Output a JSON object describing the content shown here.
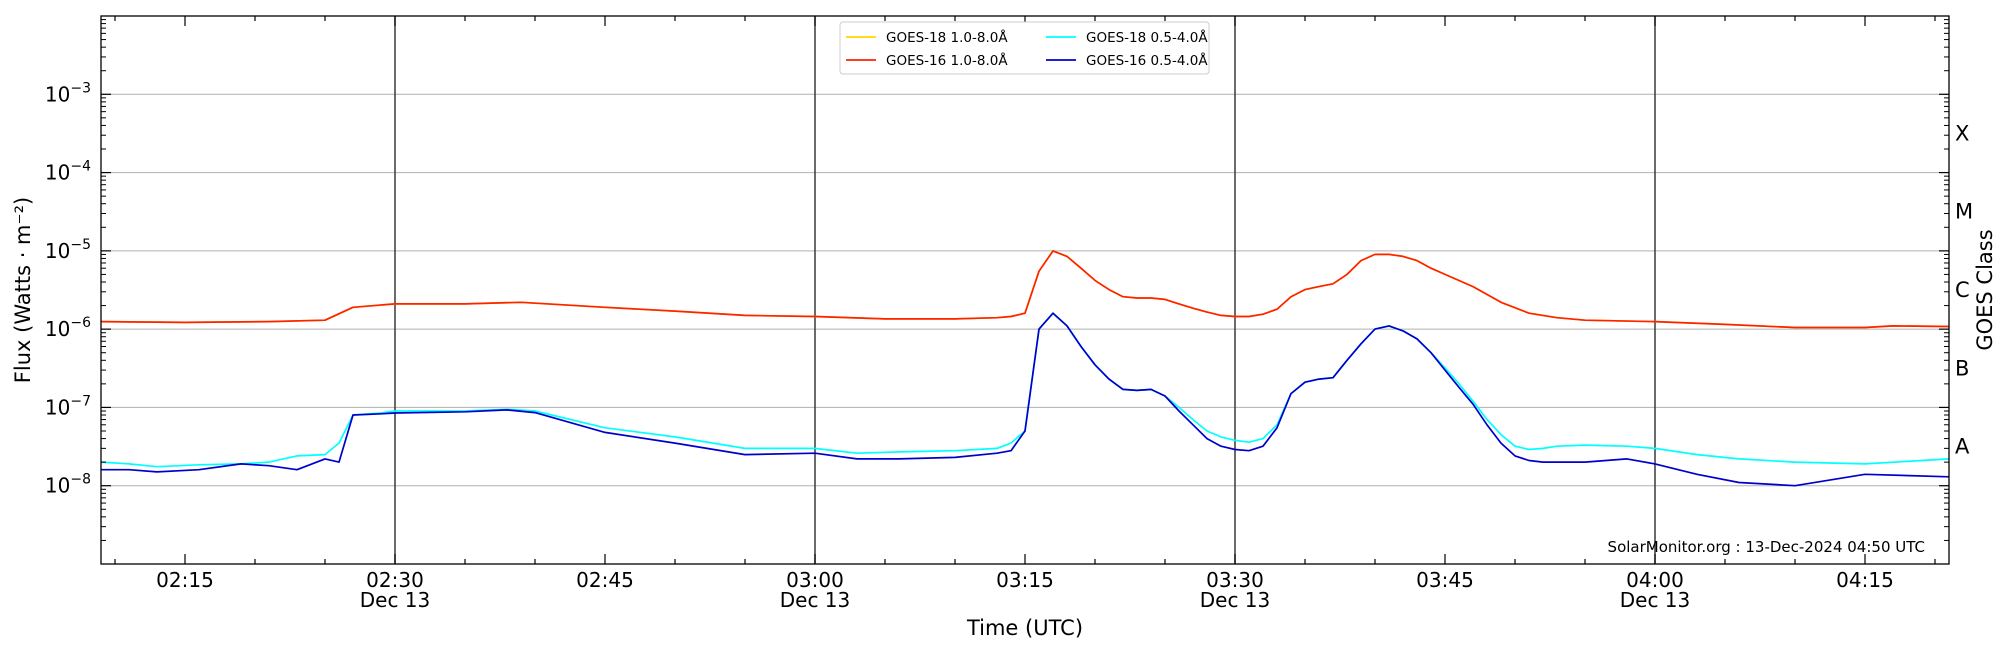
{
  "chart_data": {
    "type": "line",
    "x_unit": "minutes",
    "xlim": [
      "02:09",
      "04:21"
    ],
    "ylim": [
      1e-09,
      0.01
    ],
    "y_scale": "log",
    "xlabel": "Time (UTC)",
    "ylabel": "Flux (Watts · m⁻²)",
    "ylabel_right": "GOES Class",
    "footer": "SolarMonitor.org : 13-Dec-2024 04:50 UTC",
    "x_ticks": [
      {
        "label": "02:15",
        "date": ""
      },
      {
        "label": "02:30",
        "date": "Dec 13"
      },
      {
        "label": "02:45",
        "date": ""
      },
      {
        "label": "03:00",
        "date": "Dec 13"
      },
      {
        "label": "03:15",
        "date": ""
      },
      {
        "label": "03:30",
        "date": "Dec 13"
      },
      {
        "label": "03:45",
        "date": ""
      },
      {
        "label": "04:00",
        "date": "Dec 13"
      },
      {
        "label": "04:15",
        "date": ""
      }
    ],
    "y_ticks": [
      {
        "base": "10",
        "exp": "−8"
      },
      {
        "base": "10",
        "exp": "−7"
      },
      {
        "base": "10",
        "exp": "−6"
      },
      {
        "base": "10",
        "exp": "−5"
      },
      {
        "base": "10",
        "exp": "−4"
      },
      {
        "base": "10",
        "exp": "−3"
      }
    ],
    "goes_classes": [
      "A",
      "B",
      "C",
      "M",
      "X"
    ],
    "vlines": [
      "02:30",
      "03:00",
      "03:30",
      "04:00"
    ],
    "grid": "horizontal",
    "legend": [
      {
        "name": "GOES-18 1.0-8.0Å",
        "color": "#FFD700"
      },
      {
        "name": "GOES-18 0.5-4.0Å",
        "color": "#00FFFF"
      },
      {
        "name": "GOES-16 1.0-8.0Å",
        "color": "#FF2200"
      },
      {
        "name": "GOES-16 0.5-4.0Å",
        "color": "#0000CC"
      }
    ],
    "series": [
      {
        "name": "GOES-18 1.0-8.0Å",
        "color": "#FFD700",
        "x": [
          "02:09",
          "02:15",
          "02:21",
          "02:25",
          "02:27",
          "02:30",
          "02:35",
          "02:39",
          "02:45",
          "02:50",
          "02:55",
          "03:00",
          "03:05",
          "03:10",
          "03:13",
          "03:14",
          "03:15",
          "03:16",
          "03:17",
          "03:18",
          "03:19",
          "03:20",
          "03:21",
          "03:22",
          "03:23",
          "03:24",
          "03:25",
          "03:26",
          "03:27",
          "03:28",
          "03:29",
          "03:30",
          "03:31",
          "03:32",
          "03:33",
          "03:34",
          "03:35",
          "03:36",
          "03:37",
          "03:38",
          "03:39",
          "03:40",
          "03:41",
          "03:42",
          "03:43",
          "03:44",
          "03:45",
          "03:47",
          "03:49",
          "03:51",
          "03:53",
          "03:55",
          "04:00",
          "04:05",
          "04:10",
          "04:13",
          "04:15",
          "04:17",
          "04:21"
        ],
        "y": [
          1.25e-06,
          1.22e-06,
          1.25e-06,
          1.3e-06,
          1.9e-06,
          2.1e-06,
          2.1e-06,
          2.2e-06,
          1.9e-06,
          1.7e-06,
          1.5e-06,
          1.45e-06,
          1.35e-06,
          1.35e-06,
          1.4e-06,
          1.45e-06,
          1.6e-06,
          5.5e-06,
          1e-05,
          8.5e-06,
          6e-06,
          4.2e-06,
          3.2e-06,
          2.6e-06,
          2.5e-06,
          2.5e-06,
          2.4e-06,
          2.1e-06,
          1.85e-06,
          1.65e-06,
          1.5e-06,
          1.45e-06,
          1.45e-06,
          1.55e-06,
          1.8e-06,
          2.6e-06,
          3.2e-06,
          3.5e-06,
          3.8e-06,
          5e-06,
          7.5e-06,
          9e-06,
          9e-06,
          8.5e-06,
          7.5e-06,
          6e-06,
          5e-06,
          3.5e-06,
          2.2e-06,
          1.6e-06,
          1.4e-06,
          1.3e-06,
          1.25e-06,
          1.15e-06,
          1.05e-06,
          1.05e-06,
          1.05e-06,
          1.1e-06,
          1.08e-06
        ]
      },
      {
        "name": "GOES-16 1.0-8.0Å",
        "color": "#FF2200",
        "x": [
          "02:09",
          "02:15",
          "02:21",
          "02:25",
          "02:27",
          "02:30",
          "02:35",
          "02:39",
          "02:45",
          "02:50",
          "02:55",
          "03:00",
          "03:05",
          "03:10",
          "03:13",
          "03:14",
          "03:15",
          "03:16",
          "03:17",
          "03:18",
          "03:19",
          "03:20",
          "03:21",
          "03:22",
          "03:23",
          "03:24",
          "03:25",
          "03:26",
          "03:27",
          "03:28",
          "03:29",
          "03:30",
          "03:31",
          "03:32",
          "03:33",
          "03:34",
          "03:35",
          "03:36",
          "03:37",
          "03:38",
          "03:39",
          "03:40",
          "03:41",
          "03:42",
          "03:43",
          "03:44",
          "03:45",
          "03:47",
          "03:49",
          "03:51",
          "03:53",
          "03:55",
          "04:00",
          "04:05",
          "04:10",
          "04:13",
          "04:15",
          "04:17",
          "04:21"
        ],
        "y": [
          1.25e-06,
          1.22e-06,
          1.25e-06,
          1.3e-06,
          1.9e-06,
          2.1e-06,
          2.1e-06,
          2.2e-06,
          1.9e-06,
          1.7e-06,
          1.5e-06,
          1.45e-06,
          1.35e-06,
          1.35e-06,
          1.4e-06,
          1.45e-06,
          1.6e-06,
          5.5e-06,
          1e-05,
          8.5e-06,
          6e-06,
          4.2e-06,
          3.2e-06,
          2.6e-06,
          2.5e-06,
          2.5e-06,
          2.4e-06,
          2.1e-06,
          1.85e-06,
          1.65e-06,
          1.5e-06,
          1.45e-06,
          1.45e-06,
          1.55e-06,
          1.8e-06,
          2.6e-06,
          3.2e-06,
          3.5e-06,
          3.8e-06,
          5e-06,
          7.5e-06,
          9e-06,
          9e-06,
          8.5e-06,
          7.5e-06,
          6e-06,
          5e-06,
          3.5e-06,
          2.2e-06,
          1.6e-06,
          1.4e-06,
          1.3e-06,
          1.25e-06,
          1.15e-06,
          1.05e-06,
          1.05e-06,
          1.05e-06,
          1.1e-06,
          1.08e-06
        ]
      },
      {
        "name": "GOES-18 0.5-4.0Å",
        "color": "#00FFFF",
        "x": [
          "02:09",
          "02:11",
          "02:13",
          "02:16",
          "02:19",
          "02:21",
          "02:23",
          "02:25",
          "02:26",
          "02:27",
          "02:29",
          "02:30",
          "02:35",
          "02:38",
          "02:40",
          "02:45",
          "02:50",
          "02:55",
          "03:00",
          "03:03",
          "03:06",
          "03:10",
          "03:13",
          "03:14",
          "03:15",
          "03:16",
          "03:17",
          "03:18",
          "03:19",
          "03:20",
          "03:21",
          "03:22",
          "03:23",
          "03:24",
          "03:25",
          "03:26",
          "03:27",
          "03:28",
          "03:29",
          "03:30",
          "03:31",
          "03:32",
          "03:33",
          "03:34",
          "03:35",
          "03:36",
          "03:37",
          "03:38",
          "03:39",
          "03:40",
          "03:41",
          "03:42",
          "03:43",
          "03:44",
          "03:45",
          "03:46",
          "03:47",
          "03:48",
          "03:49",
          "03:50",
          "03:51",
          "03:52",
          "03:53",
          "03:55",
          "03:58",
          "04:00",
          "04:03",
          "04:06",
          "04:10",
          "04:15",
          "04:21"
        ],
        "y": [
          2e-08,
          1.9e-08,
          1.75e-08,
          1.85e-08,
          1.9e-08,
          2e-08,
          2.4e-08,
          2.5e-08,
          3.5e-08,
          8e-08,
          8.5e-08,
          9e-08,
          9e-08,
          9.5e-08,
          9e-08,
          5.5e-08,
          4.2e-08,
          3e-08,
          3e-08,
          2.6e-08,
          2.7e-08,
          2.8e-08,
          3e-08,
          3.5e-08,
          5e-08,
          1e-06,
          1.6e-06,
          1.1e-06,
          6e-07,
          3.5e-07,
          2.3e-07,
          1.7e-07,
          1.65e-07,
          1.7e-07,
          1.4e-07,
          1e-07,
          7e-08,
          5e-08,
          4.2e-08,
          3.8e-08,
          3.6e-08,
          4e-08,
          6e-08,
          1.5e-07,
          2.1e-07,
          2.3e-07,
          2.4e-07,
          4e-07,
          6.5e-07,
          1e-06,
          1.1e-06,
          9.5e-07,
          7.5e-07,
          5e-07,
          3.2e-07,
          2e-07,
          1.2e-07,
          7e-08,
          4.5e-08,
          3.2e-08,
          2.9e-08,
          3e-08,
          3.2e-08,
          3.3e-08,
          3.2e-08,
          3e-08,
          2.5e-08,
          2.2e-08,
          2e-08,
          1.9e-08,
          2.2e-08
        ]
      },
      {
        "name": "GOES-16 0.5-4.0Å",
        "color": "#0000CC",
        "x": [
          "02:09",
          "02:11",
          "02:13",
          "02:16",
          "02:19",
          "02:21",
          "02:23",
          "02:25",
          "02:26",
          "02:27",
          "02:29",
          "02:30",
          "02:35",
          "02:38",
          "02:40",
          "02:45",
          "02:50",
          "02:55",
          "03:00",
          "03:03",
          "03:06",
          "03:10",
          "03:13",
          "03:14",
          "03:15",
          "03:16",
          "03:17",
          "03:18",
          "03:19",
          "03:20",
          "03:21",
          "03:22",
          "03:23",
          "03:24",
          "03:25",
          "03:26",
          "03:27",
          "03:28",
          "03:29",
          "03:30",
          "03:31",
          "03:32",
          "03:33",
          "03:34",
          "03:35",
          "03:36",
          "03:37",
          "03:38",
          "03:39",
          "03:40",
          "03:41",
          "03:42",
          "03:43",
          "03:44",
          "03:45",
          "03:46",
          "03:47",
          "03:48",
          "03:49",
          "03:50",
          "03:51",
          "03:52",
          "03:53",
          "03:55",
          "03:58",
          "04:00",
          "04:03",
          "04:06",
          "04:10",
          "04:15",
          "04:21"
        ],
        "y": [
          1.6e-08,
          1.6e-08,
          1.5e-08,
          1.6e-08,
          1.9e-08,
          1.8e-08,
          1.6e-08,
          2.2e-08,
          2e-08,
          8e-08,
          8.3e-08,
          8.5e-08,
          8.8e-08,
          9.3e-08,
          8.6e-08,
          4.8e-08,
          3.5e-08,
          2.5e-08,
          2.6e-08,
          2.2e-08,
          2.2e-08,
          2.3e-08,
          2.6e-08,
          2.8e-08,
          5e-08,
          1e-06,
          1.6e-06,
          1.1e-06,
          6e-07,
          3.5e-07,
          2.3e-07,
          1.7e-07,
          1.65e-07,
          1.7e-07,
          1.4e-07,
          9e-08,
          6e-08,
          4e-08,
          3.2e-08,
          2.9e-08,
          2.8e-08,
          3.2e-08,
          5.5e-08,
          1.5e-07,
          2.1e-07,
          2.3e-07,
          2.4e-07,
          4e-07,
          6.5e-07,
          1e-06,
          1.1e-06,
          9.5e-07,
          7.5e-07,
          5e-07,
          3e-07,
          1.8e-07,
          1.1e-07,
          6e-08,
          3.5e-08,
          2.4e-08,
          2.1e-08,
          2e-08,
          2e-08,
          2e-08,
          2.2e-08,
          1.9e-08,
          1.4e-08,
          1.1e-08,
          1e-08,
          1.4e-08,
          1.3e-08
        ]
      }
    ]
  }
}
